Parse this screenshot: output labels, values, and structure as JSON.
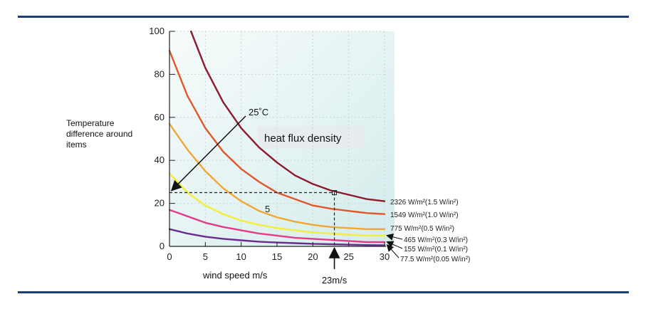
{
  "chart_data": {
    "type": "line",
    "ylabel": "Temperature difference around items",
    "xlabel": "wind speed  m/s",
    "annotation_box": "heat flux density",
    "xlim": [
      0,
      30
    ],
    "ylim": [
      0,
      100
    ],
    "xticks": [
      "0",
      "5",
      "10",
      "15",
      "20",
      "25",
      "30"
    ],
    "yticks": [
      "0",
      "20",
      "40",
      "60",
      "80",
      "100"
    ],
    "grid": true,
    "series": [
      {
        "name": "2326 W/m²(1.5 W/in²)",
        "color": "#8b1a2b",
        "x": [
          3,
          5,
          7.5,
          10,
          12.5,
          15,
          17.5,
          20,
          22.5,
          25,
          27.5,
          30
        ],
        "y": [
          100,
          83,
          67,
          55,
          46,
          39,
          33,
          29,
          26,
          24,
          22,
          21
        ]
      },
      {
        "name": "1549 W/m²(1.0 W/in²)",
        "color": "#e0572a",
        "x": [
          0,
          2.5,
          5,
          7.5,
          10,
          12.5,
          15,
          17.5,
          20,
          22.5,
          25,
          27.5,
          30
        ],
        "y": [
          91,
          70,
          55,
          44,
          36,
          30,
          25,
          22,
          19,
          17.5,
          16.5,
          15.5,
          15
        ]
      },
      {
        "name": "775 W/m²(0.5 W/in²)",
        "color": "#f1a733",
        "x": [
          0,
          2.5,
          5,
          7.5,
          10,
          12.5,
          15,
          17.5,
          20,
          22.5,
          25,
          27.5,
          30
        ],
        "y": [
          57,
          45,
          35,
          27,
          21,
          16.5,
          13.5,
          11.5,
          10,
          9,
          8.5,
          8,
          8
        ]
      },
      {
        "name": "465 W/m²(0.3 W/in²)",
        "color": "#f2ee3a",
        "x": [
          0,
          2.5,
          5,
          7.5,
          10,
          12.5,
          15,
          17.5,
          20,
          22.5,
          25,
          27.5,
          30
        ],
        "y": [
          34,
          25,
          19,
          15,
          12,
          10,
          8.5,
          7.5,
          6.5,
          6,
          5.5,
          5,
          5
        ]
      },
      {
        "name": "155 W/m²(0.1 W/in²)",
        "color": "#e33a8a",
        "x": [
          0,
          2.5,
          5,
          7.5,
          10,
          12.5,
          15,
          17.5,
          20,
          22.5,
          25,
          27.5,
          30
        ],
        "y": [
          17,
          14,
          11,
          9,
          7.5,
          6,
          5,
          4,
          3.5,
          3,
          2.5,
          2,
          2
        ]
      },
      {
        "name": "77.5 W/m²(0.05 W/in²)",
        "color": "#6a2b8f",
        "x": [
          0,
          2.5,
          5,
          7.5,
          10,
          12.5,
          15,
          17.5,
          20,
          22.5,
          25,
          27.5,
          30
        ],
        "y": [
          8,
          6,
          4.5,
          3.5,
          2.8,
          2.2,
          1.8,
          1.5,
          1.2,
          1,
          0.8,
          0.6,
          0.5
        ]
      }
    ],
    "annotations": {
      "temp_label": "25˚C",
      "mid_label": "5",
      "speed_label": "23m/s",
      "reference_x": 23,
      "reference_y": 25
    }
  }
}
